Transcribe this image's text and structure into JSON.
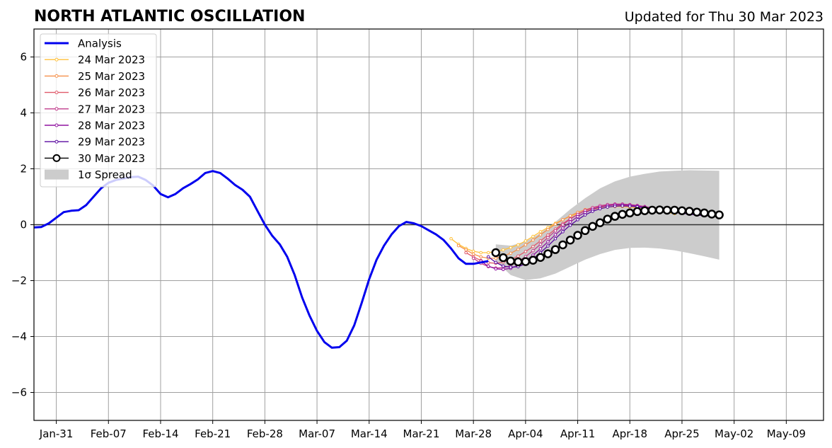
{
  "title": "NORTH ATLANTIC OSCILLATION",
  "subtitle": "Updated for Thu 30 Mar 2023",
  "chart_data": {
    "type": "line",
    "title": "NORTH ATLANTIC OSCILLATION",
    "subtitle": "Updated for Thu 30 Mar 2023",
    "xlabel": "",
    "ylabel": "",
    "xlim": [
      "2023-01-28",
      "2023-05-14"
    ],
    "ylim": [
      -7,
      7
    ],
    "x_ticks": [
      "Jan-31",
      "Feb-07",
      "Feb-14",
      "Feb-21",
      "Feb-28",
      "Mar-07",
      "Mar-14",
      "Mar-21",
      "Mar-28",
      "Apr-04",
      "Apr-11",
      "Apr-18",
      "Apr-25",
      "May-02",
      "May-09"
    ],
    "y_ticks": [
      6,
      4,
      2,
      0,
      -2,
      -4,
      -6
    ],
    "y_tick_labels": [
      "6",
      "4",
      "2",
      "0",
      "−2",
      "−4",
      "−6"
    ],
    "grid": true,
    "zero_line": 0,
    "legend_position": "top-left",
    "legend": [
      "Analysis",
      "24 Mar 2023",
      "25 Mar 2023",
      "26 Mar 2023",
      "27 Mar 2023",
      "28 Mar 2023",
      "29 Mar 2023",
      "30 Mar 2023",
      "1σ Spread"
    ],
    "colors": {
      "analysis": "#0000ee",
      "forecasts": [
        "#ffc13b",
        "#f5904a",
        "#e05a6a",
        "#c13c8c",
        "#9013a0",
        "#5a0aa0",
        "#000000"
      ],
      "spread": "#cccccc",
      "grid": "#a0a0a0"
    },
    "analysis": {
      "x": [
        "2023-01-28",
        "2023-01-29",
        "2023-01-30",
        "2023-01-31",
        "2023-02-01",
        "2023-02-02",
        "2023-02-03",
        "2023-02-04",
        "2023-02-05",
        "2023-02-06",
        "2023-02-07",
        "2023-02-08",
        "2023-02-09",
        "2023-02-10",
        "2023-02-11",
        "2023-02-12",
        "2023-02-13",
        "2023-02-14",
        "2023-02-15",
        "2023-02-16",
        "2023-02-17",
        "2023-02-18",
        "2023-02-19",
        "2023-02-20",
        "2023-02-21",
        "2023-02-22",
        "2023-02-23",
        "2023-02-24",
        "2023-02-25",
        "2023-02-26",
        "2023-02-27",
        "2023-02-28",
        "2023-03-01",
        "2023-03-02",
        "2023-03-03",
        "2023-03-04",
        "2023-03-05",
        "2023-03-06",
        "2023-03-07",
        "2023-03-08",
        "2023-03-09",
        "2023-03-10",
        "2023-03-11",
        "2023-03-12",
        "2023-03-13",
        "2023-03-14",
        "2023-03-15",
        "2023-03-16",
        "2023-03-17",
        "2023-03-18",
        "2023-03-19",
        "2023-03-20",
        "2023-03-21",
        "2023-03-22",
        "2023-03-23",
        "2023-03-24",
        "2023-03-25",
        "2023-03-26",
        "2023-03-27",
        "2023-03-28",
        "2023-03-29",
        "2023-03-30"
      ],
      "y": [
        -0.1,
        -0.08,
        0.05,
        0.25,
        0.45,
        0.5,
        0.52,
        0.7,
        1.0,
        1.3,
        1.5,
        1.6,
        1.65,
        1.7,
        1.72,
        1.6,
        1.4,
        1.1,
        0.98,
        1.1,
        1.3,
        1.45,
        1.62,
        1.85,
        1.92,
        1.85,
        1.65,
        1.42,
        1.25,
        1.0,
        0.5,
        0.0,
        -0.4,
        -0.7,
        -1.15,
        -1.8,
        -2.6,
        -3.25,
        -3.8,
        -4.2,
        -4.4,
        -4.38,
        -4.15,
        -3.6,
        -2.8,
        -1.95,
        -1.25,
        -0.75,
        -0.35,
        -0.05,
        0.1,
        0.05,
        -0.05,
        -0.2,
        -0.35,
        -0.55,
        -0.85,
        -1.2,
        -1.4,
        -1.4,
        -1.35,
        -1.3
      ]
    },
    "forecasts": [
      {
        "name": "24 Mar 2023",
        "x": [
          "2023-03-25",
          "2023-03-26",
          "2023-03-27",
          "2023-03-28",
          "2023-03-29",
          "2023-03-30",
          "2023-03-31",
          "2023-04-01",
          "2023-04-02",
          "2023-04-03",
          "2023-04-04",
          "2023-04-05",
          "2023-04-06",
          "2023-04-07",
          "2023-04-08",
          "2023-04-09",
          "2023-04-10",
          "2023-04-11",
          "2023-04-12",
          "2023-04-13",
          "2023-04-14",
          "2023-04-15",
          "2023-04-16",
          "2023-04-17",
          "2023-04-18",
          "2023-04-19",
          "2023-04-20",
          "2023-04-21",
          "2023-04-22",
          "2023-04-23",
          "2023-04-24"
        ],
        "y": [
          -0.5,
          -0.7,
          -0.85,
          -0.95,
          -1.0,
          -1.0,
          -0.95,
          -0.9,
          -0.82,
          -0.72,
          -0.58,
          -0.42,
          -0.25,
          -0.1,
          0.05,
          0.18,
          0.3,
          0.4,
          0.48,
          0.55,
          0.6,
          0.63,
          0.65,
          0.65,
          0.63,
          0.6,
          0.56,
          0.52,
          0.48,
          0.44,
          0.4
        ]
      },
      {
        "name": "25 Mar 2023",
        "x": [
          "2023-03-26",
          "2023-03-27",
          "2023-03-28",
          "2023-03-29",
          "2023-03-30",
          "2023-03-31",
          "2023-04-01",
          "2023-04-02",
          "2023-04-03",
          "2023-04-04",
          "2023-04-05",
          "2023-04-06",
          "2023-04-07",
          "2023-04-08",
          "2023-04-09",
          "2023-04-10",
          "2023-04-11",
          "2023-04-12",
          "2023-04-13",
          "2023-04-14",
          "2023-04-15",
          "2023-04-16",
          "2023-04-17",
          "2023-04-18",
          "2023-04-19",
          "2023-04-20",
          "2023-04-21",
          "2023-04-22",
          "2023-04-23",
          "2023-04-24",
          "2023-04-25"
        ],
        "y": [
          -0.75,
          -0.9,
          -1.05,
          -1.15,
          -1.2,
          -1.2,
          -1.12,
          -1.02,
          -0.88,
          -0.72,
          -0.55,
          -0.36,
          -0.17,
          0.02,
          0.18,
          0.32,
          0.44,
          0.54,
          0.61,
          0.66,
          0.69,
          0.7,
          0.7,
          0.68,
          0.65,
          0.61,
          0.57,
          0.52,
          0.48,
          0.44,
          0.4
        ]
      },
      {
        "name": "26 Mar 2023",
        "x": [
          "2023-03-27",
          "2023-03-28",
          "2023-03-29",
          "2023-03-30",
          "2023-03-31",
          "2023-04-01",
          "2023-04-02",
          "2023-04-03",
          "2023-04-04",
          "2023-04-05",
          "2023-04-06",
          "2023-04-07",
          "2023-04-08",
          "2023-04-09",
          "2023-04-10",
          "2023-04-11",
          "2023-04-12",
          "2023-04-13",
          "2023-04-14",
          "2023-04-15",
          "2023-04-16",
          "2023-04-17",
          "2023-04-18",
          "2023-04-19",
          "2023-04-20",
          "2023-04-21",
          "2023-04-22",
          "2023-04-23",
          "2023-04-24",
          "2023-04-25",
          "2023-04-26"
        ],
        "y": [
          -1.0,
          -1.15,
          -1.28,
          -1.36,
          -1.38,
          -1.34,
          -1.25,
          -1.12,
          -0.96,
          -0.78,
          -0.58,
          -0.37,
          -0.16,
          0.04,
          0.22,
          0.37,
          0.5,
          0.59,
          0.66,
          0.7,
          0.72,
          0.72,
          0.7,
          0.67,
          0.63,
          0.59,
          0.54,
          0.5,
          0.46,
          0.42,
          0.38
        ]
      },
      {
        "name": "27 Mar 2023",
        "x": [
          "2023-03-28",
          "2023-03-29",
          "2023-03-30",
          "2023-03-31",
          "2023-04-01",
          "2023-04-02",
          "2023-04-03",
          "2023-04-04",
          "2023-04-05",
          "2023-04-06",
          "2023-04-07",
          "2023-04-08",
          "2023-04-09",
          "2023-04-10",
          "2023-04-11",
          "2023-04-12",
          "2023-04-13",
          "2023-04-14",
          "2023-04-15",
          "2023-04-16",
          "2023-04-17",
          "2023-04-18",
          "2023-04-19",
          "2023-04-20",
          "2023-04-21",
          "2023-04-22",
          "2023-04-23",
          "2023-04-24",
          "2023-04-25",
          "2023-04-26",
          "2023-04-27"
        ],
        "y": [
          -1.2,
          -1.38,
          -1.5,
          -1.55,
          -1.54,
          -1.46,
          -1.32,
          -1.14,
          -0.93,
          -0.7,
          -0.46,
          -0.22,
          0.0,
          0.2,
          0.37,
          0.51,
          0.61,
          0.68,
          0.72,
          0.74,
          0.74,
          0.72,
          0.69,
          0.65,
          0.6,
          0.55,
          0.51,
          0.47,
          0.43,
          0.39,
          0.35
        ]
      },
      {
        "name": "28 Mar 2023",
        "x": [
          "2023-03-29",
          "2023-03-30",
          "2023-03-31",
          "2023-04-01",
          "2023-04-02",
          "2023-04-03",
          "2023-04-04",
          "2023-04-05",
          "2023-04-06",
          "2023-04-07",
          "2023-04-08",
          "2023-04-09",
          "2023-04-10",
          "2023-04-11",
          "2023-04-12",
          "2023-04-13",
          "2023-04-14",
          "2023-04-15",
          "2023-04-16",
          "2023-04-17",
          "2023-04-18",
          "2023-04-19",
          "2023-04-20",
          "2023-04-21",
          "2023-04-22",
          "2023-04-23",
          "2023-04-24",
          "2023-04-25",
          "2023-04-26",
          "2023-04-27",
          "2023-04-28"
        ],
        "y": [
          -1.3,
          -1.48,
          -1.58,
          -1.6,
          -1.56,
          -1.45,
          -1.29,
          -1.09,
          -0.86,
          -0.61,
          -0.36,
          -0.12,
          0.1,
          0.29,
          0.44,
          0.55,
          0.63,
          0.68,
          0.71,
          0.71,
          0.7,
          0.67,
          0.63,
          0.59,
          0.54,
          0.5,
          0.46,
          0.42,
          0.38,
          0.35,
          0.32
        ]
      },
      {
        "name": "29 Mar 2023",
        "x": [
          "2023-03-30",
          "2023-03-31",
          "2023-04-01",
          "2023-04-02",
          "2023-04-03",
          "2023-04-04",
          "2023-04-05",
          "2023-04-06",
          "2023-04-07",
          "2023-04-08",
          "2023-04-09",
          "2023-04-10",
          "2023-04-11",
          "2023-04-12",
          "2023-04-13",
          "2023-04-14",
          "2023-04-15",
          "2023-04-16",
          "2023-04-17",
          "2023-04-18",
          "2023-04-19",
          "2023-04-20",
          "2023-04-21",
          "2023-04-22",
          "2023-04-23",
          "2023-04-24",
          "2023-04-25",
          "2023-04-26",
          "2023-04-27",
          "2023-04-28",
          "2023-04-29"
        ],
        "y": [
          -1.15,
          -1.35,
          -1.48,
          -1.52,
          -1.5,
          -1.4,
          -1.22,
          -1.0,
          -0.76,
          -0.5,
          -0.25,
          -0.02,
          0.18,
          0.35,
          0.48,
          0.57,
          0.63,
          0.66,
          0.67,
          0.66,
          0.64,
          0.6,
          0.56,
          0.52,
          0.48,
          0.44,
          0.41,
          0.38,
          0.35,
          0.33,
          0.31
        ]
      },
      {
        "name": "30 Mar 2023",
        "x": [
          "2023-03-31",
          "2023-04-01",
          "2023-04-02",
          "2023-04-03",
          "2023-04-04",
          "2023-04-05",
          "2023-04-06",
          "2023-04-07",
          "2023-04-08",
          "2023-04-09",
          "2023-04-10",
          "2023-04-11",
          "2023-04-12",
          "2023-04-13",
          "2023-04-14",
          "2023-04-15",
          "2023-04-16",
          "2023-04-17",
          "2023-04-18",
          "2023-04-19",
          "2023-04-20",
          "2023-04-21",
          "2023-04-22",
          "2023-04-23",
          "2023-04-24",
          "2023-04-25",
          "2023-04-26",
          "2023-04-27",
          "2023-04-28",
          "2023-04-29",
          "2023-04-30"
        ],
        "y": [
          -1.0,
          -1.18,
          -1.3,
          -1.33,
          -1.32,
          -1.27,
          -1.17,
          -1.04,
          -0.89,
          -0.72,
          -0.55,
          -0.38,
          -0.21,
          -0.06,
          0.07,
          0.2,
          0.3,
          0.37,
          0.42,
          0.47,
          0.5,
          0.52,
          0.53,
          0.52,
          0.52,
          0.5,
          0.48,
          0.45,
          0.42,
          0.38,
          0.35
        ]
      }
    ],
    "spread": {
      "x": [
        "2023-03-31",
        "2023-04-02",
        "2023-04-04",
        "2023-04-06",
        "2023-04-08",
        "2023-04-10",
        "2023-04-12",
        "2023-04-14",
        "2023-04-16",
        "2023-04-18",
        "2023-04-20",
        "2023-04-22",
        "2023-04-24",
        "2023-04-26",
        "2023-04-28",
        "2023-04-30"
      ],
      "upper": [
        -0.7,
        -0.75,
        -0.6,
        -0.3,
        0.1,
        0.55,
        0.95,
        1.3,
        1.55,
        1.72,
        1.82,
        1.9,
        1.93,
        1.95,
        1.94,
        1.93
      ],
      "lower": [
        -1.3,
        -1.8,
        -1.98,
        -1.92,
        -1.75,
        -1.5,
        -1.25,
        -1.05,
        -0.9,
        -0.83,
        -0.82,
        -0.85,
        -0.92,
        -1.02,
        -1.13,
        -1.25
      ]
    }
  }
}
